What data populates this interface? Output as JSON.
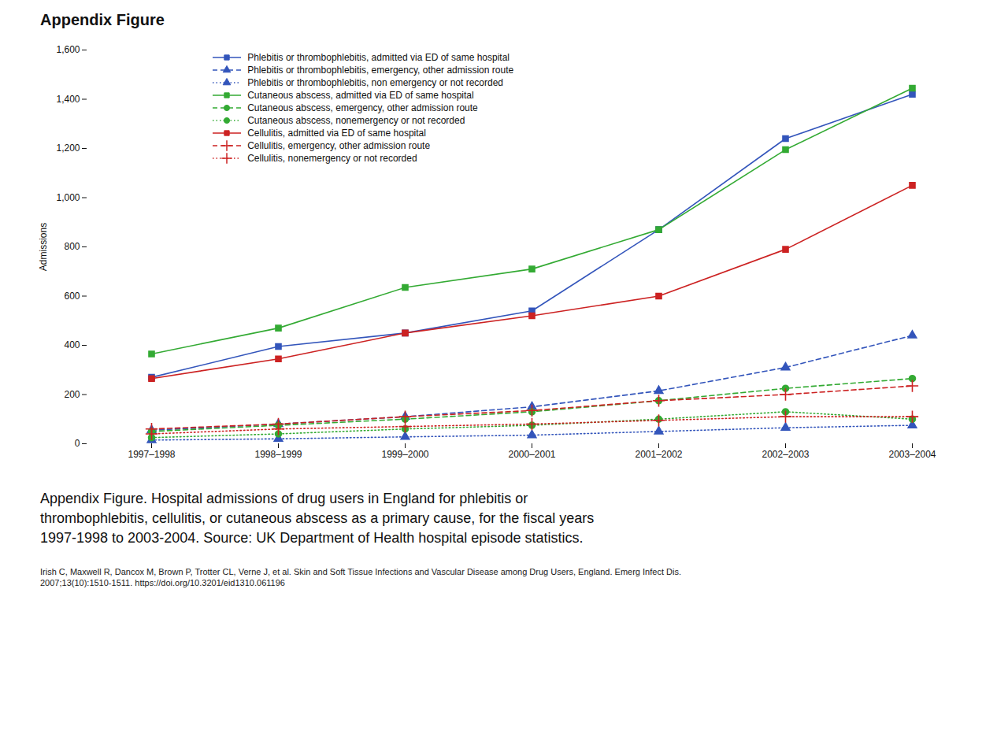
{
  "chart_data": {
    "type": "line",
    "title": "Appendix Figure",
    "ylabel": "Admissions",
    "categories": [
      "1997–1998",
      "1998–1999",
      "1999–2000",
      "2000–2001",
      "2001–2002",
      "2002–2003",
      "2003–2004"
    ],
    "series": [
      {
        "name": "Phlebitis or thrombophlebitis, admitted via ED of same hospital",
        "color": "#3355bb",
        "line_style": "solid",
        "marker": "square",
        "values": [
          270,
          395,
          450,
          540,
          870,
          1240,
          1420
        ]
      },
      {
        "name": "Phlebitis or thrombophlebitis, emergency, other admission route",
        "color": "#3355bb",
        "line_style": "dashed",
        "marker": "triangle",
        "values": [
          55,
          80,
          110,
          150,
          215,
          310,
          440
        ]
      },
      {
        "name": "Phlebitis or thrombophlebitis, non emergency or not recorded",
        "color": "#3355bb",
        "line_style": "dotted",
        "marker": "triangle",
        "values": [
          15,
          20,
          28,
          35,
          50,
          65,
          75
        ]
      },
      {
        "name": "Cutaneous abscess, admitted via ED of same hospital",
        "color": "#33aa33",
        "line_style": "solid",
        "marker": "square",
        "values": [
          365,
          470,
          635,
          710,
          870,
          1195,
          1445
        ]
      },
      {
        "name": "Cutaneous abscess, emergency, other admission route",
        "color": "#33aa33",
        "line_style": "dashed",
        "marker": "circle",
        "values": [
          50,
          75,
          100,
          130,
          175,
          225,
          265
        ]
      },
      {
        "name": "Cutaneous abscess, nonemergency or not recorded",
        "color": "#33aa33",
        "line_style": "dotted",
        "marker": "circle",
        "values": [
          25,
          40,
          60,
          75,
          100,
          130,
          100
        ]
      },
      {
        "name": "Cellulitis, admitted via ED of same hospital",
        "color": "#cc2222",
        "line_style": "solid",
        "marker": "square",
        "values": [
          265,
          345,
          450,
          520,
          600,
          790,
          1050
        ]
      },
      {
        "name": "Cellulitis, emergency, other admission route",
        "color": "#cc2222",
        "line_style": "dashed",
        "marker": "plus",
        "values": [
          60,
          80,
          110,
          135,
          175,
          200,
          235
        ]
      },
      {
        "name": "Cellulitis, nonemergency or not recorded",
        "color": "#cc2222",
        "line_style": "dotted",
        "marker": "plus",
        "values": [
          40,
          60,
          70,
          80,
          95,
          110,
          110
        ]
      }
    ],
    "ylim": [
      0,
      1600
    ],
    "yticks": [
      0,
      200,
      400,
      600,
      800,
      {
        "value": 1000,
        "label": "1,000"
      },
      {
        "value": 1200,
        "label": "1,200"
      },
      {
        "value": 1400,
        "label": "1,400"
      },
      {
        "value": 1600,
        "label": "1,600"
      }
    ],
    "grid": false,
    "legend": "upper left",
    "annotations": [
      "Appendix Figure. Hospital admissions of drug users in England for phlebitis or\nthrombophlebitis, cellulitis, or cutaneous abscess as a primary cause, for the fiscal years\n1997-1998 to 2003-2004. Source: UK Department of Health hospital episode statistics.",
      "Irish C, Maxwell R, Dancox M, Brown P, Trotter CL, Verne J, et al. Skin and Soft Tissue Infections and Vascular Disease among Drug Users, England. Emerg Infect Dis.\n2007;13(10):1510-1511. https://doi.org/10.3201/eid1310.061196"
    ]
  }
}
